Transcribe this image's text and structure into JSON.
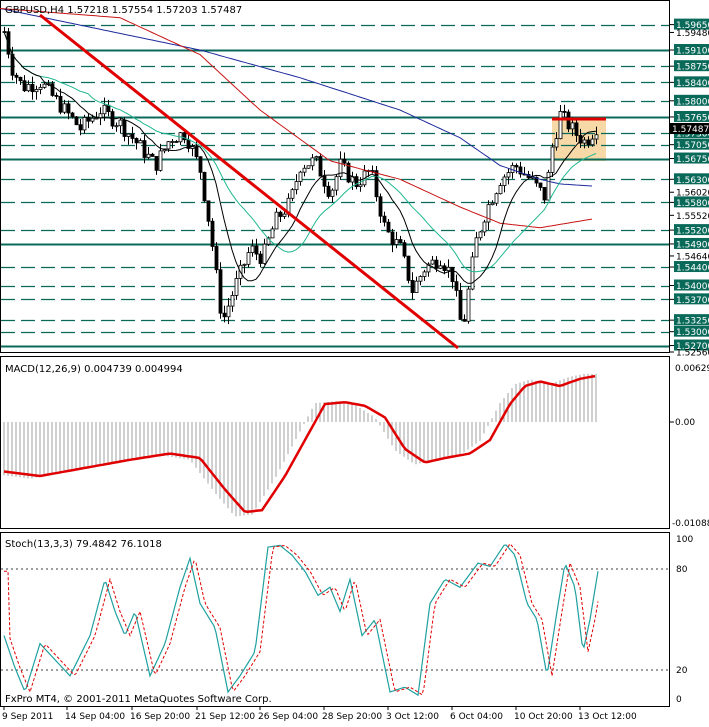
{
  "main": {
    "title": "GBPUSD,H4  1.57218 1.57554 1.57203 1.57487",
    "price_labels": [
      "1.59650",
      "1.59480",
      "1.59100",
      "1.58750",
      "1.58400",
      "1.58000",
      "1.57650",
      "1.57487",
      "1.57300",
      "1.57050",
      "1.56750",
      "1.56300",
      "1.56020",
      "1.55800",
      "1.55520",
      "1.55200",
      "1.54900",
      "1.54640",
      "1.54400",
      "1.54000",
      "1.53700",
      "1.53250",
      "1.53000",
      "1.52700",
      "1.52560"
    ],
    "current_price": "1.57487",
    "h_levels": [
      1.5965,
      1.591,
      1.5875,
      1.584,
      1.58,
      1.5765,
      1.573,
      1.5705,
      1.5675,
      1.563,
      1.558,
      1.552,
      1.549,
      1.544,
      1.54,
      1.537,
      1.5325,
      1.53,
      1.527
    ]
  },
  "macd": {
    "title": "MACD(12,26,9) 0.004739 0.004994",
    "labels": [
      "0.00629",
      "0.00",
      "-0.01088"
    ]
  },
  "stoch": {
    "title": "Stoch(13,3,3) 79.4842 76.1018",
    "labels": [
      "100",
      "80",
      "20",
      "0"
    ]
  },
  "x_labels": [
    "9 Sep 2011",
    "14 Sep 04:00",
    "16 Sep 20:00",
    "21 Sep 12:00",
    "26 Sep 04:00",
    "28 Sep 20:00",
    "3 Oct 12:00",
    "6 Oct 04:00",
    "10 Oct 20:00",
    "13 Oct 12:00"
  ],
  "copyright": "FxPro MT4, © 2001-2011 MetaQuotes Software Corp.",
  "colors": {
    "level_line": "#0a6a5a",
    "trend_line": "#e00000",
    "ma_blue": "#1e2a9c",
    "ma_red": "#c81414",
    "ma_green": "#20b890",
    "ma_black": "#000000",
    "macd_signal": "#e00000",
    "macd_hist": "#a0a0a0",
    "stoch_main": "#20a0a0",
    "stoch_signal": "#e00000",
    "highlight": "#f7d9a8"
  }
}
